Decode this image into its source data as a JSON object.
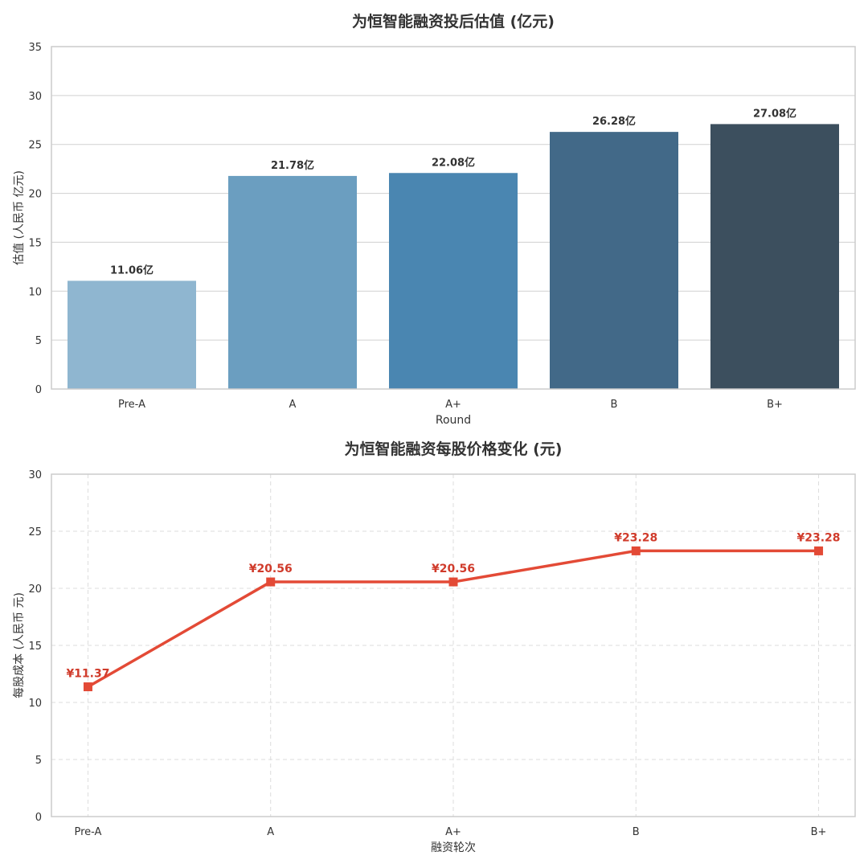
{
  "chart_data": [
    {
      "type": "bar",
      "title": "为恒智能融资投后估值 (亿元)",
      "xlabel": "Round",
      "ylabel": "估值 (人民币 亿元)",
      "categories": [
        "Pre-A",
        "A",
        "A+",
        "B",
        "B+"
      ],
      "values": [
        11.06,
        21.78,
        22.08,
        26.28,
        27.08
      ],
      "data_labels": [
        "11.06亿",
        "21.78亿",
        "22.08亿",
        "26.28亿",
        "27.08亿"
      ],
      "colors": [
        "#8fb6d0",
        "#6b9ec0",
        "#4a86b1",
        "#426988",
        "#3c4f5e"
      ],
      "ylim": [
        0,
        35
      ],
      "yticks": [
        0,
        5,
        10,
        15,
        20,
        25,
        30,
        35
      ],
      "grid": "horizontal",
      "legend": "none"
    },
    {
      "type": "line",
      "title": "为恒智能融资每股价格变化 (元)",
      "xlabel": "融资轮次",
      "ylabel": "每股成本 (人民币 元)",
      "categories": [
        "Pre-A",
        "A",
        "A+",
        "B",
        "B+"
      ],
      "values": [
        11.37,
        20.56,
        20.56,
        23.28,
        23.28
      ],
      "data_labels": [
        "¥11.37",
        "¥20.56",
        "¥20.56",
        "¥23.28",
        "¥23.28"
      ],
      "color": "#e34a36",
      "label_color": "#d03b2b",
      "marker": "square",
      "ylim": [
        0,
        30
      ],
      "yticks": [
        0,
        5,
        10,
        15,
        20,
        25,
        30
      ],
      "grid": "dashed both",
      "legend": "none"
    }
  ]
}
